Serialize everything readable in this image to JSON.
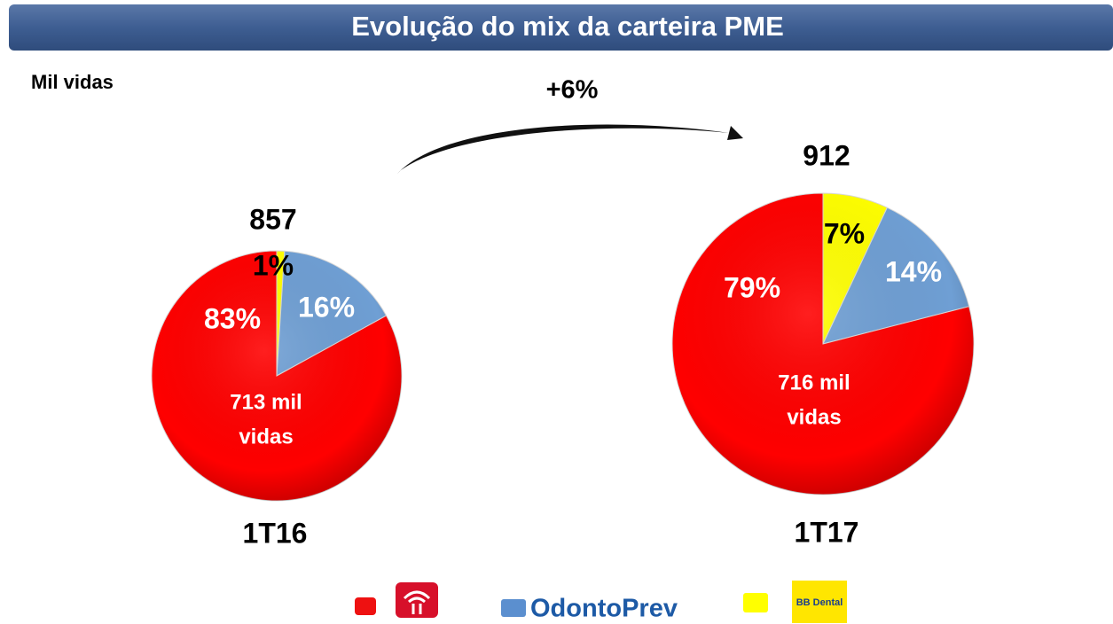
{
  "header": {
    "title": "Evolução do mix da carteira PME"
  },
  "unit_label": "Mil vidas",
  "growth_label": "+6%",
  "legend_logos": [
    "OdontoPrev",
    "BB Dental"
  ],
  "chart_data": [
    {
      "type": "pie",
      "category": "1T16",
      "total": 857,
      "values": [
        1,
        16,
        83
      ],
      "value_labels": [
        "1%",
        "16%",
        "83%"
      ],
      "colors": [
        "#ffff00",
        "#6f9fd4",
        "#ff0000"
      ],
      "annotation_lines": [
        "713 mil",
        "vidas"
      ]
    },
    {
      "type": "pie",
      "category": "1T17",
      "total": 912,
      "values": [
        7,
        14,
        79
      ],
      "value_labels": [
        "7%",
        "14%",
        "79%"
      ],
      "colors": [
        "#ffff00",
        "#6f9fd4",
        "#ff0000"
      ],
      "annotation_lines": [
        "716 mil",
        "vidas"
      ]
    }
  ]
}
